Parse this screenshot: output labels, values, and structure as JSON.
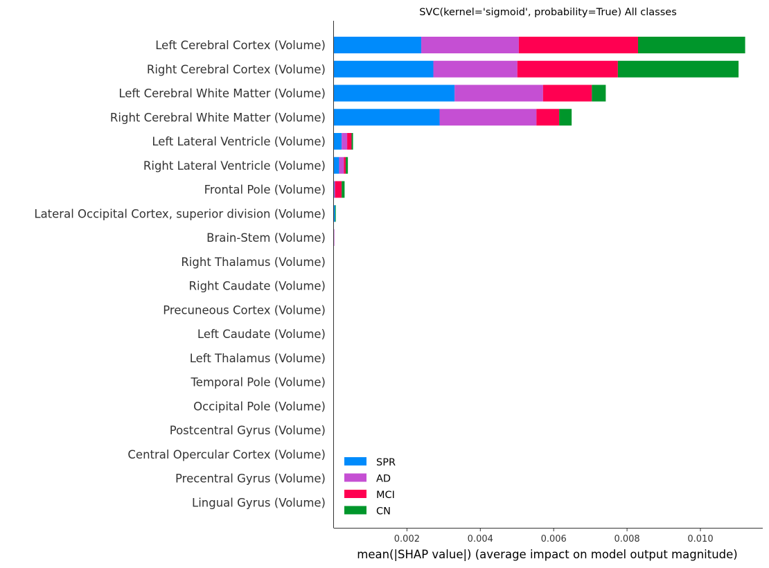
{
  "chart_data": {
    "type": "bar",
    "orientation": "horizontal",
    "stacked": true,
    "title": "SVC(kernel='sigmoid', probability=True) All classes",
    "xlabel": "mean(|SHAP value|) (average impact on model output magnitude)",
    "ylabel": "",
    "xlim": [
      0,
      0.0117
    ],
    "xticks": [
      0.002,
      0.004,
      0.006,
      0.008,
      0.01
    ],
    "xtick_labels": [
      "0.002",
      "0.004",
      "0.006",
      "0.008",
      "0.010"
    ],
    "grid": false,
    "legend_position": "lower-left",
    "categories": [
      "Left Cerebral Cortex  (Volume)",
      "Right Cerebral Cortex (Volume)",
      "Left Cerebral White Matter (Volume)",
      "Right Cerebral White Matter (Volume)",
      "Left Lateral Ventricle (Volume)",
      "Right Lateral Ventricle (Volume)",
      "Frontal Pole (Volume)",
      "Lateral Occipital Cortex, superior division (Volume)",
      "Brain-Stem (Volume)",
      "Right Thalamus (Volume)",
      "Right Caudate (Volume)",
      "Precuneous Cortex (Volume)",
      "Left Caudate (Volume)",
      "Left Thalamus (Volume)",
      "Temporal Pole (Volume)",
      "Occipital Pole (Volume)",
      "Postcentral Gyrus (Volume)",
      "Central Opercular Cortex (Volume)",
      "Precentral Gyrus (Volume)",
      "Lingual Gyrus (Volume)"
    ],
    "series": [
      {
        "name": "SPR",
        "color": "#008bfb",
        "values": [
          0.00239,
          0.00272,
          0.0033,
          0.00289,
          0.00022,
          0.00015,
          2e-05,
          4e-05,
          0.0,
          0,
          0,
          0,
          0,
          0,
          0,
          0,
          0,
          0,
          0,
          0
        ]
      },
      {
        "name": "AD",
        "color": "#c54fd3",
        "values": [
          0.00266,
          0.00229,
          0.00241,
          0.00264,
          0.00015,
          0.00013,
          2e-05,
          0.0,
          2e-05,
          0,
          0,
          0,
          0,
          0,
          0,
          0,
          0,
          0,
          0,
          0
        ]
      },
      {
        "name": "MCI",
        "color": "#ff0051",
        "values": [
          0.00325,
          0.00274,
          0.00133,
          0.00062,
          0.00012,
          5e-05,
          0.00018,
          0.0,
          0.0,
          0,
          0,
          0,
          0,
          0,
          0,
          0,
          0,
          0,
          0,
          0
        ]
      },
      {
        "name": "CN",
        "color": "#00962b",
        "values": [
          0.00292,
          0.00329,
          0.00038,
          0.00034,
          4e-05,
          6e-05,
          8e-05,
          2e-05,
          0.0,
          0,
          0,
          0,
          0,
          0,
          0,
          0,
          0,
          0,
          0,
          0
        ]
      }
    ]
  }
}
